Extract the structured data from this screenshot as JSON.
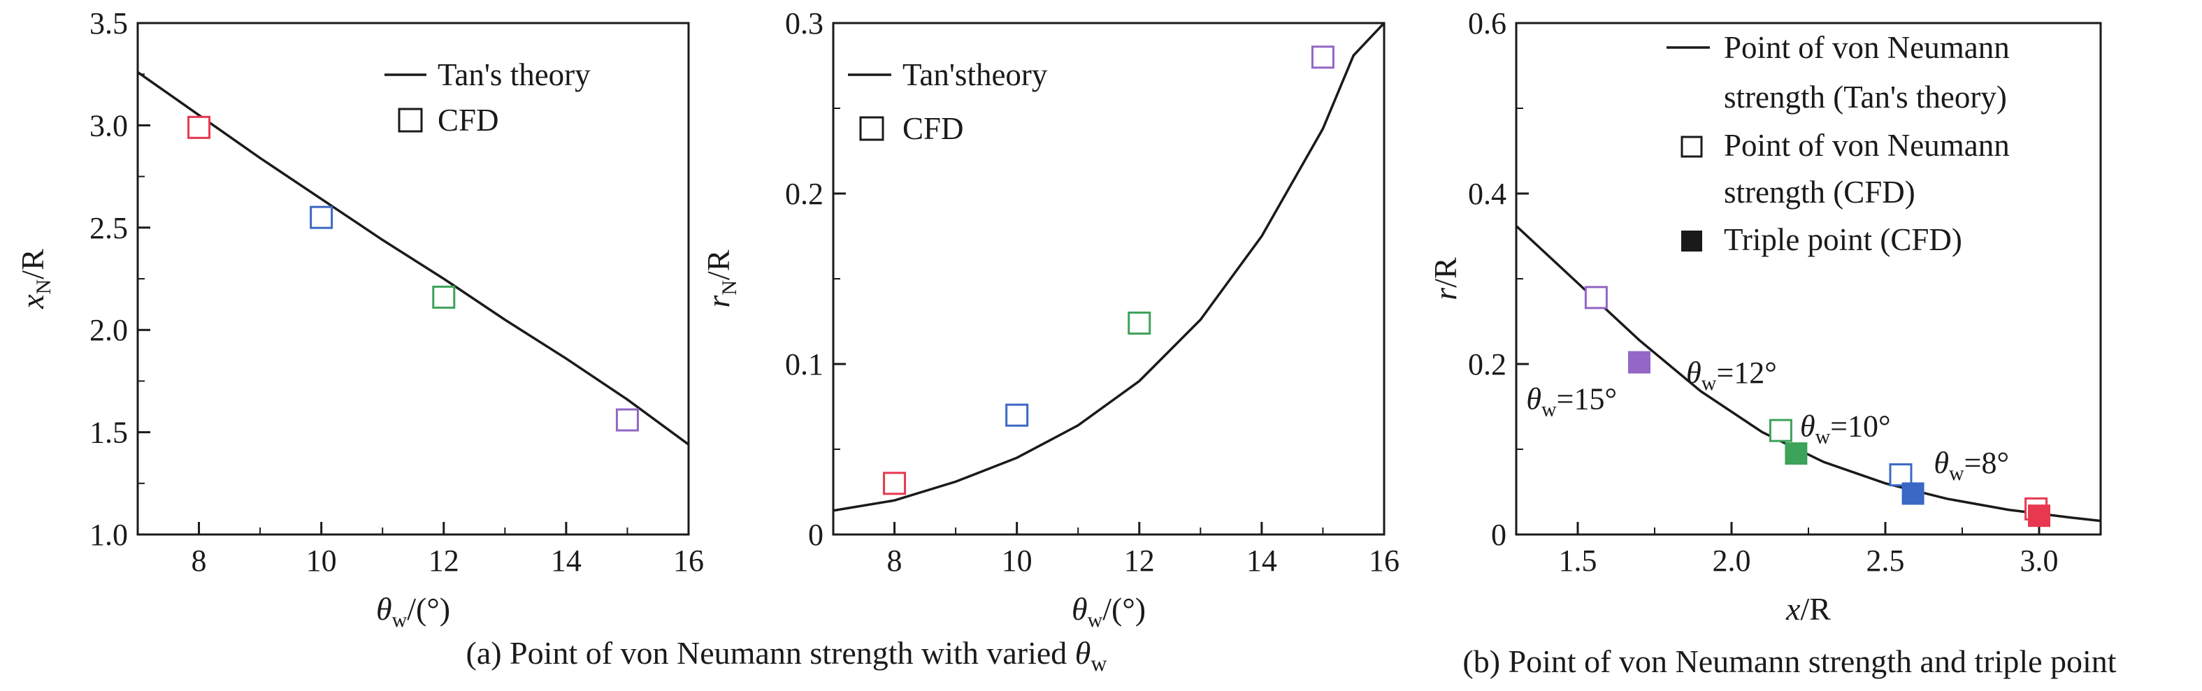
{
  "chart_data": [
    {
      "type": "line+scatter",
      "xlim": [
        7,
        16
      ],
      "ylim": [
        1.0,
        3.5
      ],
      "xticks": [
        8,
        10,
        12,
        14,
        16
      ],
      "yticks": [
        "1.0",
        "1.5",
        "2.0",
        "2.5",
        "3.0",
        "3.5"
      ],
      "xlabel_sym": "θ",
      "xlabel_sub": "w",
      "xlabel_rest": "/(°)",
      "ylabel_sym": "x",
      "ylabel_sub": "N",
      "ylabel_rest": "/R",
      "legend": {
        "line": "Tan's theory",
        "marker": "CFD"
      },
      "theory": {
        "x": [
          7,
          8,
          9,
          10,
          11,
          12,
          13,
          14,
          15,
          16
        ],
        "y": [
          3.26,
          3.05,
          2.84,
          2.64,
          2.44,
          2.25,
          2.05,
          1.86,
          1.66,
          1.44
        ]
      },
      "cfd": [
        {
          "x": 8,
          "y": 2.99,
          "color": "#e8384f"
        },
        {
          "x": 10,
          "y": 2.55,
          "color": "#3b68c4"
        },
        {
          "x": 12,
          "y": 2.16,
          "color": "#3da25a"
        },
        {
          "x": 15,
          "y": 1.56,
          "color": "#9466c6"
        }
      ]
    },
    {
      "type": "line+scatter",
      "xlim": [
        7,
        16
      ],
      "ylim": [
        0,
        0.3
      ],
      "xticks": [
        8,
        10,
        12,
        14,
        16
      ],
      "yticks": [
        "0",
        "0.1",
        "0.2",
        "0.3"
      ],
      "xlabel_sym": "θ",
      "xlabel_sub": "w",
      "xlabel_rest": "/(°)",
      "ylabel_sym": "r",
      "ylabel_sub": "N",
      "ylabel_rest": "/R",
      "legend": {
        "line": "Tan'stheory",
        "marker": "CFD"
      },
      "theory": {
        "x": [
          7,
          8,
          9,
          10,
          11,
          12,
          13,
          14,
          15,
          15.5,
          16
        ],
        "y": [
          0.014,
          0.02,
          0.031,
          0.045,
          0.064,
          0.09,
          0.126,
          0.175,
          0.238,
          0.281,
          0.3
        ]
      },
      "cfd": [
        {
          "x": 8,
          "y": 0.03,
          "color": "#e8384f"
        },
        {
          "x": 10,
          "y": 0.07,
          "color": "#3b68c4"
        },
        {
          "x": 12,
          "y": 0.124,
          "color": "#3da25a"
        },
        {
          "x": 15,
          "y": 0.28,
          "color": "#9466c6"
        }
      ]
    },
    {
      "type": "line+scatter",
      "xlim": [
        1.3,
        3.2
      ],
      "ylim": [
        0,
        0.6
      ],
      "xticks": [
        "1.5",
        "2.0",
        "2.5",
        "3.0"
      ],
      "yticks": [
        "0",
        "0.2",
        "0.4",
        "0.6"
      ],
      "xlabel_sym": "x",
      "xlabel_sub": "",
      "xlabel_rest": "/R",
      "ylabel_sym": "r",
      "ylabel_sub": "",
      "ylabel_rest": "/R",
      "legend": {
        "line_1": "Point of von Neumann",
        "line_2": "strength (Tan's theory)",
        "open_1": "Point of von Neumann",
        "open_2": "strength (CFD)",
        "filled": "Triple point (CFD)"
      },
      "theory": {
        "x": [
          1.3,
          1.5,
          1.7,
          1.9,
          2.1,
          2.3,
          2.5,
          2.7,
          2.9,
          3.1,
          3.2
        ],
        "y": [
          0.362,
          0.295,
          0.228,
          0.168,
          0.12,
          0.085,
          0.06,
          0.042,
          0.029,
          0.02,
          0.016
        ]
      },
      "cfd_open": [
        {
          "x": 1.56,
          "y": 0.278,
          "color": "#9466c6"
        },
        {
          "x": 2.16,
          "y": 0.122,
          "color": "#3da25a"
        },
        {
          "x": 2.55,
          "y": 0.07,
          "color": "#3b68c4"
        },
        {
          "x": 2.99,
          "y": 0.03,
          "color": "#e8384f"
        }
      ],
      "triple": [
        {
          "x": 1.7,
          "y": 0.202,
          "color": "#9466c6"
        },
        {
          "x": 2.21,
          "y": 0.095,
          "color": "#3da25a"
        },
        {
          "x": 2.59,
          "y": 0.048,
          "color": "#3b68c4"
        },
        {
          "x": 3.0,
          "y": 0.022,
          "color": "#e8384f"
        }
      ],
      "annotations": [
        {
          "sym": "θ",
          "sub": "w",
          "rest": "=15°",
          "ax": 1.48,
          "ay": 0.147
        },
        {
          "sym": "θ",
          "sub": "w",
          "rest": "=12°",
          "ax": 2.0,
          "ay": 0.178
        },
        {
          "sym": "θ",
          "sub": "w",
          "rest": "=10°",
          "ax": 2.37,
          "ay": 0.115
        },
        {
          "sym": "θ",
          "sub": "w",
          "rest": "=8°",
          "ax": 2.78,
          "ay": 0.072
        }
      ]
    }
  ],
  "captions": {
    "a_text": "(a) Point of von Neumann strength with varied ",
    "a_sym": "θ",
    "a_sub": "w",
    "b_text": "(b) Point of von Neumann strength and triple point"
  }
}
